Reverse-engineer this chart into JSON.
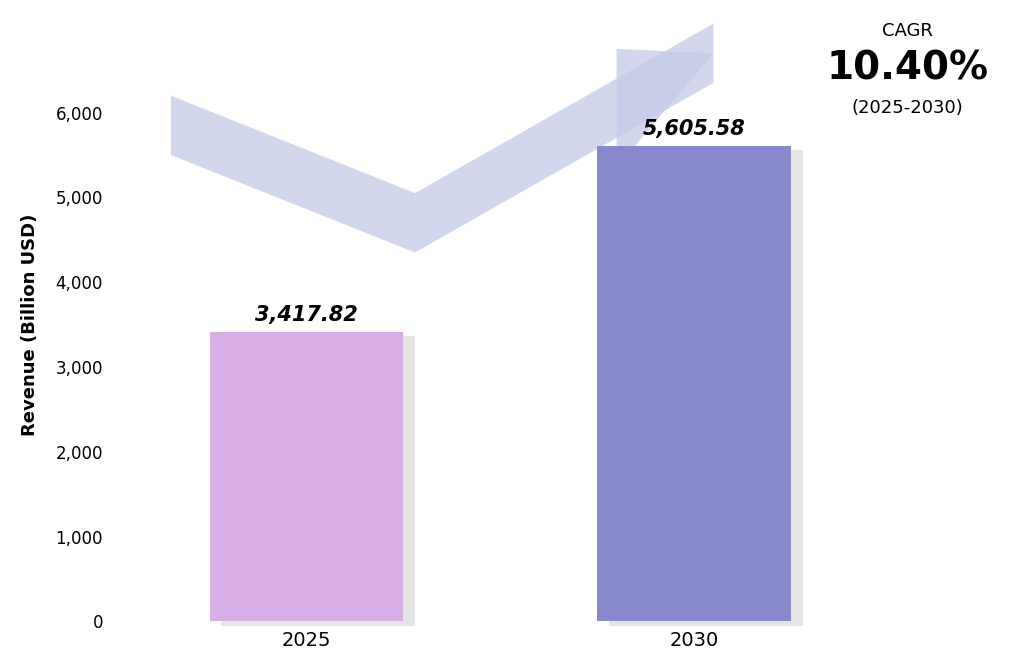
{
  "categories": [
    "2025",
    "2030"
  ],
  "values": [
    3417.82,
    5605.58
  ],
  "bar_colors": [
    "#d8aee8",
    "#8888cc"
  ],
  "shadow_color": "#aaaaaa",
  "ylabel": "Revenue (Billion USD)",
  "ylim": [
    0,
    7000
  ],
  "yticks": [
    0,
    1000,
    2000,
    3000,
    4000,
    5000,
    6000
  ],
  "bar_labels": [
    "3,417.82",
    "5,605.58"
  ],
  "cagr_label": "CAGR",
  "cagr_value": "10.40%",
  "cagr_period": "(2025-2030)",
  "arrow_color": "#c5cae9",
  "background_color": "#ffffff"
}
